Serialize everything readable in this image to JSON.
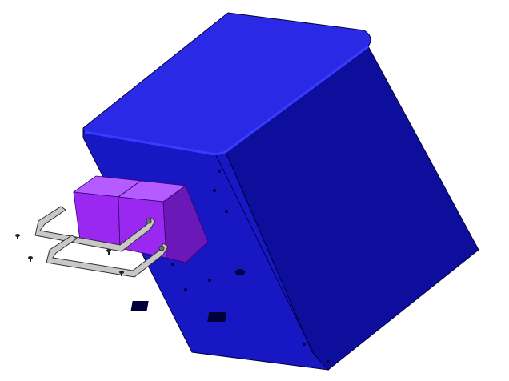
{
  "scene": {
    "kind": "exploded-assembly-view",
    "background_color": "#ffffff",
    "colors": {
      "housing_top": "#2a2ae6",
      "housing_side": "#0e0e9c",
      "housing_front": "#1717c4",
      "housing_edge": "#000040",
      "battery_front": "#9a28f0",
      "battery_top": "#b45cff",
      "battery_side": "#6a18b8",
      "bracket": "#c8c8c8",
      "bracket_edge": "#303030",
      "screw": "#202020"
    },
    "parts": [
      "enclosure",
      "battery-pack-left",
      "battery-pack-right",
      "bracket-upper",
      "bracket-lower",
      "screw"
    ]
  }
}
